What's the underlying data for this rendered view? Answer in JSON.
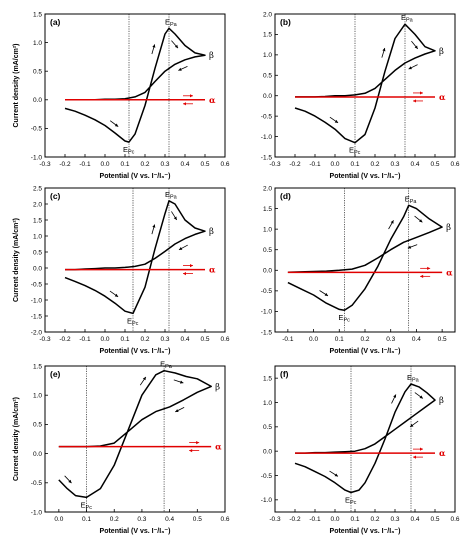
{
  "chart_data": [
    {
      "panel_label": "(a)",
      "type": "line",
      "xlabel": "Potential (V vs. I⁻/I₃⁻)",
      "ylabel": "Current density (mA/cm²)",
      "xlim": [
        -0.3,
        0.6
      ],
      "ylim": [
        -1.0,
        1.5
      ],
      "xticks": [
        -0.3,
        -0.2,
        -0.1,
        0.0,
        0.1,
        0.2,
        0.3,
        0.4,
        0.5,
        0.6
      ],
      "yticks": [
        -1.0,
        -0.5,
        0.0,
        0.5,
        1.0,
        1.5
      ],
      "tick_decimals": 1,
      "peak_labels": {
        "anodic": "E",
        "anodic_sub": "Pa",
        "cathodic": "E",
        "cathodic_sub": "Pc"
      },
      "series_labels": {
        "dark": "α",
        "light": "β"
      },
      "Epa": 0.32,
      "Epc": 0.12,
      "series": [
        {
          "name": "β",
          "color": "#000000",
          "x": [
            -0.2,
            -0.15,
            -0.1,
            -0.05,
            0.0,
            0.05,
            0.1,
            0.12,
            0.15,
            0.2,
            0.25,
            0.3,
            0.32,
            0.35,
            0.4,
            0.45,
            0.5,
            0.45,
            0.4,
            0.35,
            0.3,
            0.25,
            0.2,
            0.15,
            0.1,
            0.05,
            0.0,
            -0.05,
            -0.1,
            -0.15,
            -0.2
          ],
          "y": [
            -0.15,
            -0.2,
            -0.27,
            -0.35,
            -0.45,
            -0.58,
            -0.72,
            -0.74,
            -0.6,
            -0.1,
            0.55,
            1.15,
            1.25,
            1.15,
            0.95,
            0.82,
            0.78,
            0.75,
            0.7,
            0.62,
            0.5,
            0.32,
            0.13,
            0.05,
            0.02,
            0.01,
            0.01,
            0.0,
            0.0,
            0.0,
            0.0
          ]
        },
        {
          "name": "α",
          "color": "#e00000",
          "x": [
            -0.2,
            0.5
          ],
          "y": [
            0.0,
            0.0
          ]
        }
      ]
    },
    {
      "panel_label": "(b)",
      "type": "line",
      "xlabel": "Potential (V vs. I⁻/I₃⁻)",
      "ylabel": "",
      "xlim": [
        -0.3,
        0.6
      ],
      "ylim": [
        -1.5,
        2.0
      ],
      "xticks": [
        -0.3,
        -0.2,
        -0.1,
        0.0,
        0.1,
        0.2,
        0.3,
        0.4,
        0.5,
        0.6
      ],
      "yticks": [
        -1.5,
        -1.0,
        -0.5,
        0.0,
        0.5,
        1.0,
        1.5,
        2.0
      ],
      "tick_decimals": 1,
      "peak_labels": {
        "anodic": "E",
        "anodic_sub": "Pa",
        "cathodic": "E",
        "cathodic_sub": "Pc"
      },
      "series_labels": {
        "dark": "α",
        "light": "β"
      },
      "Epa": 0.35,
      "Epc": 0.1,
      "series": [
        {
          "name": "β",
          "color": "#000000",
          "x": [
            -0.2,
            -0.15,
            -0.1,
            -0.05,
            0.0,
            0.05,
            0.1,
            0.15,
            0.2,
            0.25,
            0.3,
            0.35,
            0.4,
            0.45,
            0.5,
            0.45,
            0.4,
            0.35,
            0.3,
            0.25,
            0.2,
            0.15,
            0.1,
            0.05,
            0.0,
            -0.05,
            -0.1,
            -0.15,
            -0.2
          ],
          "y": [
            -0.3,
            -0.38,
            -0.5,
            -0.65,
            -0.82,
            -1.05,
            -1.15,
            -0.95,
            -0.3,
            0.6,
            1.4,
            1.75,
            1.5,
            1.2,
            1.1,
            1.02,
            0.92,
            0.8,
            0.62,
            0.4,
            0.18,
            0.06,
            0.02,
            0.0,
            0.0,
            -0.02,
            -0.03,
            -0.03,
            -0.03
          ]
        },
        {
          "name": "α",
          "color": "#e00000",
          "x": [
            -0.2,
            0.5
          ],
          "y": [
            -0.03,
            -0.03
          ]
        }
      ]
    },
    {
      "panel_label": "(c)",
      "type": "line",
      "xlabel": "Potential (V vs. I⁻/I₃⁻)",
      "ylabel": "Current density (mA/cm²)",
      "xlim": [
        -0.3,
        0.6
      ],
      "ylim": [
        -2.0,
        2.5
      ],
      "xticks": [
        -0.3,
        -0.2,
        -0.1,
        0.0,
        0.1,
        0.2,
        0.3,
        0.4,
        0.5,
        0.6
      ],
      "yticks": [
        -2.0,
        -1.5,
        -1.0,
        -0.5,
        0.0,
        0.5,
        1.0,
        1.5,
        2.0,
        2.5
      ],
      "tick_decimals": 1,
      "peak_labels": {
        "anodic": "E",
        "anodic_sub": "Pa",
        "cathodic": "E",
        "cathodic_sub": "Pc"
      },
      "series_labels": {
        "dark": "α",
        "light": "β"
      },
      "Epa": 0.32,
      "Epc": 0.14,
      "series": [
        {
          "name": "β",
          "color": "#000000",
          "x": [
            -0.2,
            -0.15,
            -0.1,
            -0.05,
            0.0,
            0.05,
            0.1,
            0.14,
            0.2,
            0.25,
            0.3,
            0.32,
            0.35,
            0.4,
            0.45,
            0.5,
            0.45,
            0.4,
            0.35,
            0.3,
            0.25,
            0.2,
            0.15,
            0.1,
            0.05,
            0.0,
            -0.05,
            -0.1,
            -0.15,
            -0.2
          ],
          "y": [
            -0.3,
            -0.42,
            -0.55,
            -0.7,
            -0.88,
            -1.1,
            -1.35,
            -1.42,
            -0.6,
            0.6,
            1.7,
            2.1,
            2.0,
            1.5,
            1.25,
            1.15,
            1.05,
            0.92,
            0.75,
            0.52,
            0.3,
            0.12,
            0.05,
            0.02,
            0.0,
            0.0,
            -0.02,
            -0.03,
            -0.05,
            -0.05
          ]
        },
        {
          "name": "α",
          "color": "#e00000",
          "x": [
            -0.2,
            0.5
          ],
          "y": [
            -0.05,
            -0.05
          ]
        }
      ]
    },
    {
      "panel_label": "(d)",
      "type": "line",
      "xlabel": "Potential (V vs. I⁻/I₃⁻)",
      "ylabel": "",
      "xlim": [
        -0.15,
        0.55
      ],
      "ylim": [
        -1.5,
        2.0
      ],
      "xticks": [
        -0.1,
        0.0,
        0.1,
        0.2,
        0.3,
        0.4,
        0.5
      ],
      "yticks": [
        -1.5,
        -1.0,
        -0.5,
        0.0,
        0.5,
        1.0,
        1.5,
        2.0
      ],
      "tick_decimals": 1,
      "peak_labels": {
        "anodic": "E",
        "anodic_sub": "Pa",
        "cathodic": "E",
        "cathodic_sub": "Pc"
      },
      "series_labels": {
        "dark": "α",
        "light": "β"
      },
      "Epa": 0.37,
      "Epc": 0.12,
      "series": [
        {
          "name": "β",
          "color": "#000000",
          "x": [
            -0.1,
            -0.05,
            0.0,
            0.05,
            0.1,
            0.12,
            0.15,
            0.2,
            0.25,
            0.3,
            0.35,
            0.37,
            0.4,
            0.45,
            0.5,
            0.45,
            0.4,
            0.35,
            0.3,
            0.25,
            0.2,
            0.15,
            0.1,
            0.05,
            0.0,
            -0.05,
            -0.1
          ],
          "y": [
            -0.3,
            -0.45,
            -0.6,
            -0.8,
            -0.95,
            -0.97,
            -0.85,
            -0.45,
            0.1,
            0.75,
            1.3,
            1.58,
            1.5,
            1.25,
            1.05,
            0.92,
            0.8,
            0.68,
            0.5,
            0.3,
            0.12,
            0.03,
            0.0,
            -0.02,
            -0.03,
            -0.04,
            -0.05
          ]
        },
        {
          "name": "α",
          "color": "#e00000",
          "x": [
            -0.1,
            0.5
          ],
          "y": [
            -0.05,
            -0.05
          ]
        }
      ]
    },
    {
      "panel_label": "(e)",
      "type": "line",
      "xlabel": "Potential (V vs. I⁻/I₃⁻)",
      "ylabel": "Current density (mA/cm²)",
      "xlim": [
        -0.05,
        0.6
      ],
      "ylim": [
        -1.0,
        1.5
      ],
      "xticks": [
        0.0,
        0.1,
        0.2,
        0.3,
        0.4,
        0.5,
        0.6
      ],
      "yticks": [
        -1.0,
        -0.5,
        0.0,
        0.5,
        1.0,
        1.5
      ],
      "tick_decimals": 1,
      "peak_labels": {
        "anodic": "E",
        "anodic_sub": "Pa",
        "cathodic": "E",
        "cathodic_sub": "Pc"
      },
      "series_labels": {
        "dark": "α",
        "light": "β"
      },
      "Epa": 0.38,
      "Epc": 0.1,
      "series": [
        {
          "name": "β",
          "color": "#000000",
          "x": [
            0.0,
            0.03,
            0.06,
            0.1,
            0.15,
            0.2,
            0.25,
            0.3,
            0.35,
            0.38,
            0.42,
            0.46,
            0.5,
            0.55,
            0.5,
            0.45,
            0.4,
            0.35,
            0.3,
            0.25,
            0.2,
            0.15,
            0.1,
            0.05,
            0.0
          ],
          "y": [
            -0.45,
            -0.6,
            -0.72,
            -0.75,
            -0.6,
            -0.2,
            0.4,
            1.0,
            1.35,
            1.42,
            1.38,
            1.32,
            1.28,
            1.15,
            1.05,
            0.92,
            0.8,
            0.72,
            0.58,
            0.38,
            0.18,
            0.13,
            0.12,
            0.12,
            0.12
          ]
        },
        {
          "name": "α",
          "color": "#e00000",
          "x": [
            0.0,
            0.55
          ],
          "y": [
            0.12,
            0.12
          ]
        }
      ]
    },
    {
      "panel_label": "(f)",
      "type": "line",
      "xlabel": "Potential (V vs. I⁻/I₃⁻)",
      "ylabel": "",
      "xlim": [
        -0.3,
        0.6
      ],
      "ylim": [
        -1.25,
        1.75
      ],
      "xticks": [
        -0.3,
        -0.2,
        -0.1,
        0.0,
        0.1,
        0.2,
        0.3,
        0.4,
        0.5,
        0.6
      ],
      "yticks": [
        -1.0,
        -0.5,
        0.0,
        0.5,
        1.0,
        1.5
      ],
      "tick_decimals": 1,
      "peak_labels": {
        "anodic": "E",
        "anodic_sub": "Pa",
        "cathodic": "E",
        "cathodic_sub": "Pc"
      },
      "series_labels": {
        "dark": "α",
        "light": "β"
      },
      "Epa": 0.38,
      "Epc": 0.08,
      "series": [
        {
          "name": "β",
          "color": "#000000",
          "x": [
            -0.2,
            -0.15,
            -0.1,
            -0.05,
            0.0,
            0.05,
            0.08,
            0.12,
            0.15,
            0.2,
            0.25,
            0.3,
            0.35,
            0.38,
            0.42,
            0.46,
            0.5,
            0.45,
            0.4,
            0.35,
            0.3,
            0.25,
            0.2,
            0.15,
            0.1,
            0.05,
            0.0,
            -0.05,
            -0.1,
            -0.15,
            -0.2
          ],
          "y": [
            -0.25,
            -0.32,
            -0.42,
            -0.52,
            -0.65,
            -0.8,
            -0.85,
            -0.8,
            -0.65,
            -0.25,
            0.25,
            0.8,
            1.22,
            1.38,
            1.32,
            1.2,
            1.05,
            0.9,
            0.75,
            0.6,
            0.45,
            0.3,
            0.15,
            0.05,
            0.0,
            -0.01,
            -0.02,
            -0.03,
            -0.03,
            -0.04,
            -0.04
          ]
        },
        {
          "name": "α",
          "color": "#e00000",
          "x": [
            -0.2,
            0.5
          ],
          "y": [
            -0.04,
            -0.04
          ]
        }
      ]
    }
  ]
}
